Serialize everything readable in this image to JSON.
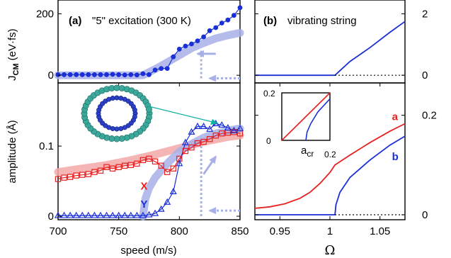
{
  "colors": {
    "blue": "#1a2fd6",
    "red": "#e82020",
    "light_blue": "#a8b0e8",
    "light_red": "#f4a8a8",
    "teal": "#10b0a0",
    "inset_blue": "#1a2fd6",
    "inset_red": "#e82020"
  },
  "chart_data": [
    {
      "panel": "top-left",
      "type": "line",
      "title": "(a)",
      "subtitle": "\"5\" excitation (300 K)",
      "ylabel": "J_CM (eV·fs)",
      "ylabel_main": "J",
      "ylabel_sub": "CM",
      "ylabel_rest": "(eV·fs)",
      "xlim": [
        700,
        850
      ],
      "ylim": [
        -25,
        245
      ],
      "yticks": [
        0,
        200
      ],
      "series": [
        {
          "style": "marker-line",
          "color": "blue",
          "x": [
            700,
            705,
            710,
            715,
            720,
            725,
            730,
            735,
            740,
            745,
            750,
            755,
            760,
            765,
            770,
            775,
            780,
            785,
            790,
            795,
            800,
            805,
            810,
            815,
            820,
            825,
            830,
            835,
            840,
            845,
            850
          ],
          "y": [
            2,
            2,
            2,
            2,
            2,
            2,
            2,
            2,
            2,
            3,
            2,
            1,
            2,
            1,
            5,
            2,
            17,
            22,
            22,
            60,
            85,
            95,
            102,
            112,
            125,
            145,
            155,
            170,
            180,
            195,
            220
          ]
        },
        {
          "style": "band",
          "color": "light_blue",
          "x": [
            700,
            770,
            780,
            790,
            800,
            810,
            820,
            830,
            840,
            850
          ],
          "y": [
            0,
            0,
            20,
            42,
            65,
            88,
            105,
            120,
            130,
            138
          ]
        }
      ],
      "arrows": [
        {
          "style": "solid",
          "color": "light_blue",
          "x": [
            830,
            815
          ],
          "y": [
            70,
            70
          ]
        },
        {
          "style": "dotted",
          "color": "light_blue",
          "x": [
            850,
            825
          ],
          "y": [
            -10,
            -10
          ]
        }
      ],
      "dotted_vertical": {
        "x": 818,
        "y": [
          -10,
          85
        ]
      }
    },
    {
      "panel": "bottom-left",
      "type": "line",
      "xlabel": "speed (m/s)",
      "ylabel": "amplitude (Å)",
      "xlim": [
        700,
        850
      ],
      "ylim": [
        -0.005,
        0.19
      ],
      "xticks": [
        700,
        750,
        800,
        850
      ],
      "yticks": [
        0,
        0.1
      ],
      "series": [
        {
          "name": "X",
          "style": "square-line",
          "color": "red",
          "x": [
            700,
            705,
            710,
            715,
            720,
            725,
            730,
            735,
            740,
            745,
            750,
            755,
            760,
            765,
            770,
            775,
            780,
            785,
            790,
            795,
            800,
            805,
            810,
            815,
            820,
            825,
            830,
            835,
            840,
            845,
            850
          ],
          "y": [
            0.053,
            0.055,
            0.056,
            0.058,
            0.059,
            0.06,
            0.063,
            0.065,
            0.07,
            0.068,
            0.07,
            0.072,
            0.073,
            0.075,
            0.08,
            0.082,
            0.078,
            0.072,
            0.063,
            0.068,
            0.082,
            0.093,
            0.098,
            0.104,
            0.106,
            0.11,
            0.115,
            0.118,
            0.119,
            0.12,
            0.118
          ]
        },
        {
          "name": "Y",
          "style": "triangle-line",
          "color": "blue",
          "x": [
            700,
            705,
            710,
            715,
            720,
            725,
            730,
            735,
            740,
            745,
            750,
            755,
            760,
            765,
            770,
            775,
            780,
            785,
            790,
            795,
            800,
            805,
            810,
            815,
            820,
            825,
            830,
            835,
            840,
            845,
            850
          ],
          "y": [
            0.001,
            0.001,
            0.001,
            0.001,
            0.001,
            0.001,
            0.001,
            0.001,
            0.001,
            0.001,
            0.001,
            0.001,
            0.001,
            0.001,
            0.001,
            0.002,
            0.004,
            0.01,
            0.02,
            0.035,
            0.075,
            0.105,
            0.12,
            0.128,
            0.128,
            0.124,
            0.132,
            0.13,
            0.126,
            0.122,
            0.125
          ]
        },
        {
          "style": "band",
          "color": "light_red",
          "x": [
            700,
            720,
            740,
            760,
            780,
            800,
            820,
            840,
            850
          ],
          "y": [
            0.063,
            0.068,
            0.073,
            0.08,
            0.088,
            0.097,
            0.106,
            0.113,
            0.115
          ]
        },
        {
          "style": "band",
          "color": "light_blue",
          "x": [
            770,
            772,
            775,
            780,
            790,
            800,
            810,
            820,
            830,
            840,
            850
          ],
          "y": [
            0.0,
            0.025,
            0.04,
            0.055,
            0.075,
            0.092,
            0.103,
            0.112,
            0.118,
            0.122,
            0.125
          ]
        }
      ],
      "arrows": [
        {
          "style": "solid",
          "color": "light_blue",
          "x": [
            820,
            830
          ],
          "y": [
            0.06,
            0.085
          ]
        },
        {
          "style": "dotted",
          "color": "light_blue",
          "x": [
            850,
            825
          ],
          "y": [
            0.008,
            0.008
          ]
        }
      ],
      "dotted_vertical": {
        "x": 818,
        "y": [
          0.0,
          0.1
        ]
      },
      "series_labels": [
        {
          "text": "X",
          "color": "red",
          "x": 768,
          "y": 0.038
        },
        {
          "text": "Y",
          "color": "blue",
          "x": 768,
          "y": 0.012
        }
      ]
    },
    {
      "panel": "top-right",
      "type": "line",
      "title": "(b)",
      "subtitle": "vibrating string",
      "xlim": [
        0.925,
        1.075
      ],
      "ylim": [
        -0.25,
        2.45
      ],
      "yticks": [
        0,
        2
      ],
      "series": [
        {
          "style": "line",
          "color": "blue",
          "x": [
            0.925,
            1.005,
            1.01,
            1.02,
            1.04,
            1.06,
            1.075
          ],
          "y": [
            0,
            0,
            0.15,
            0.45,
            0.9,
            1.4,
            1.75
          ]
        },
        {
          "style": "dotted",
          "color": "black",
          "x": [
            1.005,
            1.075
          ],
          "y": [
            0,
            0
          ]
        }
      ]
    },
    {
      "panel": "bottom-right",
      "type": "line",
      "xlabel": "Ω",
      "xlim": [
        0.925,
        1.075
      ],
      "ylim": [
        -0.01,
        0.265
      ],
      "xticks": [
        0.95,
        1,
        1.05
      ],
      "xtick_labels": [
        "0.95",
        "1",
        "1.05"
      ],
      "yticks": [
        0,
        0.2
      ],
      "ytick_labels": [
        "0",
        "0.2"
      ],
      "series": [
        {
          "name": "a",
          "style": "line",
          "color": "red",
          "x": [
            0.925,
            0.94,
            0.955,
            0.97,
            0.98,
            0.99,
            1.0,
            1.005,
            1.02,
            1.04,
            1.06,
            1.075
          ],
          "y": [
            0.013,
            0.016,
            0.022,
            0.033,
            0.045,
            0.063,
            0.085,
            0.1,
            0.12,
            0.145,
            0.168,
            0.183
          ]
        },
        {
          "name": "b",
          "style": "line",
          "color": "blue",
          "x": [
            0.925,
            1.005,
            1.006,
            1.01,
            1.02,
            1.04,
            1.06,
            1.075
          ],
          "y": [
            0,
            0,
            0.02,
            0.045,
            0.075,
            0.11,
            0.14,
            0.158
          ]
        },
        {
          "style": "dotted",
          "color": "black",
          "x": [
            1.005,
            1.075
          ],
          "y": [
            0,
            0
          ]
        }
      ],
      "series_labels": [
        {
          "text": "a",
          "color": "red",
          "x": 1.062,
          "y": 0.19
        },
        {
          "text": "b",
          "color": "blue",
          "x": 1.062,
          "y": 0.11
        }
      ],
      "inset": {
        "xlim": [
          0,
          0.2
        ],
        "ylim": [
          0,
          0.2
        ],
        "xtick_labels": [
          "0",
          "0.2"
        ],
        "ytick_labels": [
          "0.2"
        ],
        "annotation_main": "a",
        "annotation_sub": "cr",
        "series": [
          {
            "color": "red",
            "x": [
              0,
              0.2
            ],
            "y": [
              0,
              0.2
            ]
          },
          {
            "color": "blue",
            "x": [
              0.1,
              0.105,
              0.12,
              0.15,
              0.2
            ],
            "y": [
              0,
              0.035,
              0.07,
              0.12,
              0.175
            ]
          }
        ]
      }
    }
  ]
}
